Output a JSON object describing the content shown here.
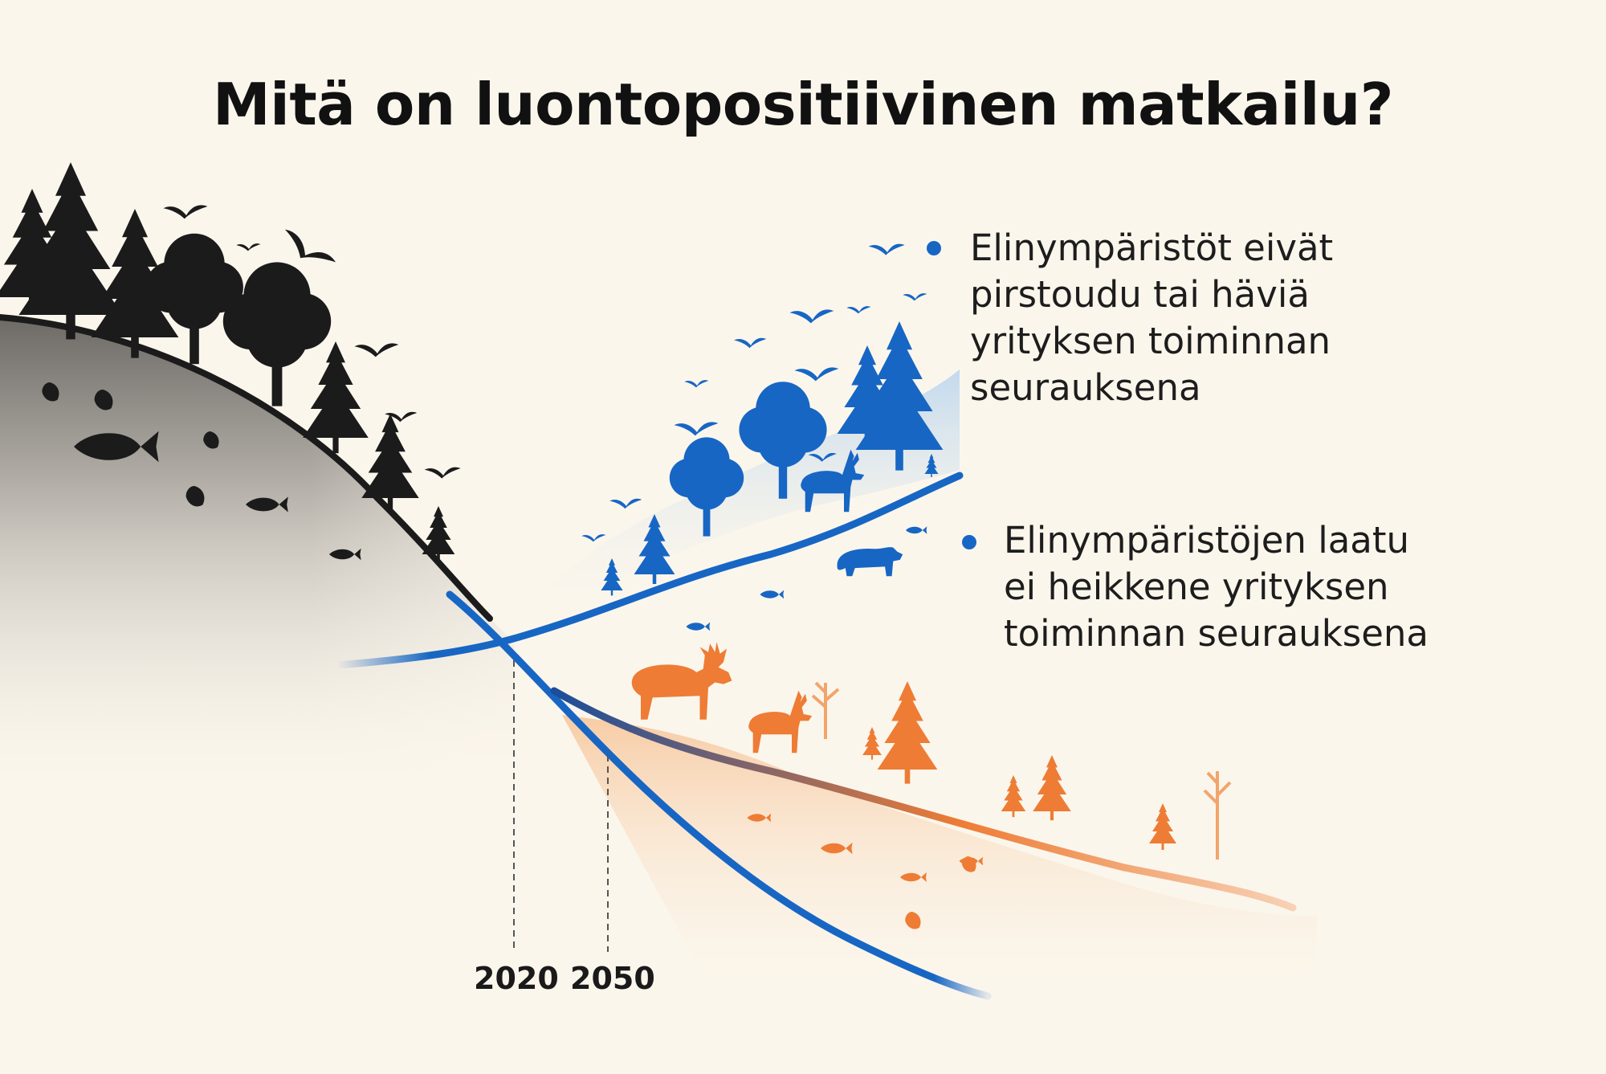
{
  "title": "Mitä on luontopositiivinen matkailu?",
  "bullets": [
    {
      "lines": [
        "Elinympäristöt eivät",
        "pirstoudu tai häviä",
        "yrityksen toiminnan",
        "seurauksena"
      ]
    },
    {
      "lines": [
        "Elinympäristöjen laatu",
        "ei heikkene yrityksen",
        "toiminnan seurauksena"
      ]
    }
  ],
  "timeline": {
    "years": [
      "2020",
      "2050"
    ]
  },
  "colors": {
    "background": "#fbf6ec",
    "blue": "#1766c4",
    "orange": "#ee7c35",
    "dark": "#1b1b1b"
  },
  "icons": [
    "conifer-tree-icon",
    "deciduous-tree-icon",
    "bird-icon",
    "fish-icon",
    "deer-icon",
    "moose-icon",
    "bear-icon",
    "leaf-icon"
  ]
}
